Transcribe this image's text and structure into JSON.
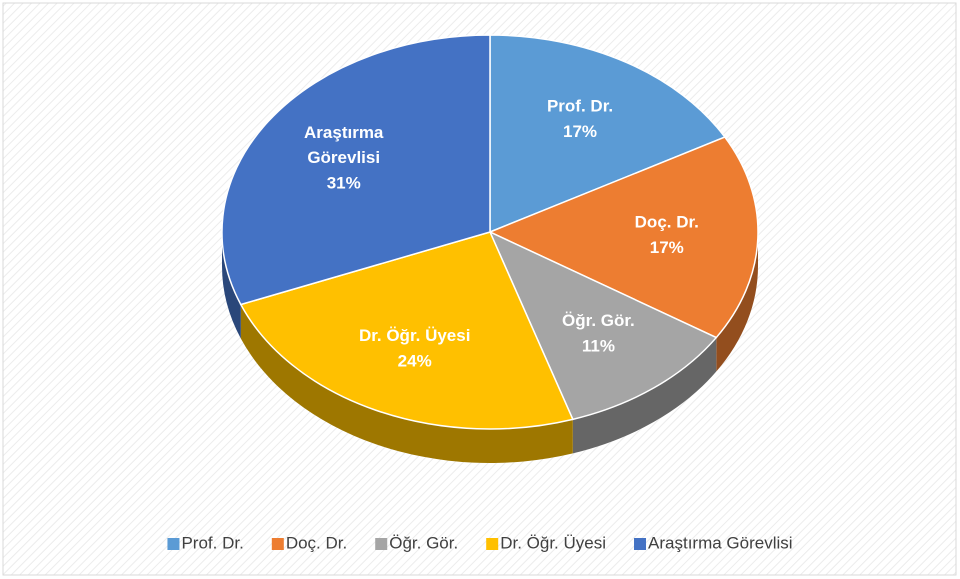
{
  "chart_data": {
    "type": "pie",
    "categories": [
      "Prof. Dr.",
      "Doç. Dr.",
      "Öğr. Gör.",
      "Dr. Öğr. Üyesi",
      "Araştırma Görevlisi"
    ],
    "values": [
      17,
      17,
      11,
      24,
      31
    ],
    "value_labels": [
      "17%",
      "17%",
      "11%",
      "24%",
      "31%"
    ],
    "colors": [
      "#5b9bd5",
      "#ed7d31",
      "#a5a5a5",
      "#ffc000",
      "#4472c4"
    ],
    "legend": "bottom"
  }
}
